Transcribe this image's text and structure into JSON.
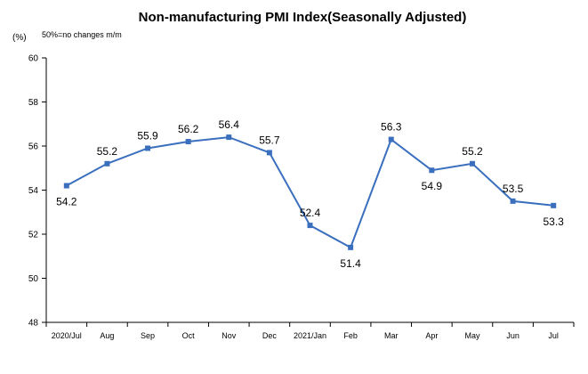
{
  "chart_data": {
    "type": "line",
    "title": "Non-manufacturing PMI Index(Seasonally Adjusted)",
    "ylabel": "(%)",
    "note": "50%=no changes  m/m",
    "ylim": [
      48,
      60
    ],
    "yticks": [
      "48",
      "50",
      "52",
      "54",
      "56",
      "58",
      "60"
    ],
    "categories": [
      "2020/Jul",
      "Aug",
      "Sep",
      "Oct",
      "Nov",
      "Dec",
      "2021/Jan",
      "Feb",
      "Mar",
      "Apr",
      "May",
      "Jun",
      "Jul"
    ],
    "values": [
      54.2,
      55.2,
      55.9,
      56.2,
      56.4,
      55.7,
      52.4,
      51.4,
      56.3,
      54.9,
      55.2,
      53.5,
      53.3
    ],
    "labels": [
      "54.2",
      "55.2",
      "55.9",
      "56.2",
      "56.4",
      "55.7",
      "52.4",
      "51.4",
      "56.3",
      "54.9",
      "55.2",
      "53.5",
      "53.3"
    ],
    "line_color": "#3a6fbe",
    "grid": false
  }
}
